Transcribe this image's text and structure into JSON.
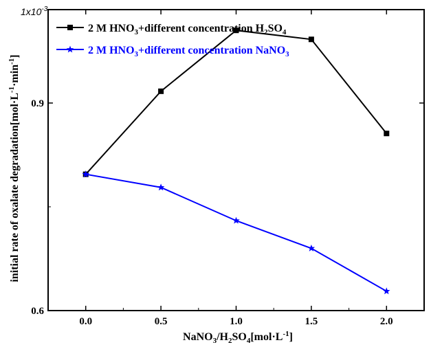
{
  "chart_data": {
    "type": "line",
    "title": "",
    "x": [
      0.0,
      0.5,
      1.0,
      1.5,
      2.0
    ],
    "xtick_labels": [
      "0.0",
      "0.5",
      "1.0",
      "1.5",
      "2.0"
    ],
    "xlim": [
      -0.25,
      2.25
    ],
    "xlabel": {
      "pre": "NaNO",
      "sub1": "3",
      "mid": "/H",
      "sub2": "2",
      "post": "SO",
      "sub3": "4",
      "tail": "[mol·L",
      "sup": "-1",
      "end": "]"
    },
    "ylim": [
      0.6,
      1.035
    ],
    "yticks": [
      0.6,
      0.9
    ],
    "ytick_labels": [
      "0.6",
      "0.9"
    ],
    "ylabel": {
      "pre": "initial rate of oxalate degradation[mol·L",
      "sup1": "-1",
      "mid": "·min",
      "sup2": "-1",
      "end": "]"
    },
    "multiplier": "1x10",
    "multiplier_exp": "-3",
    "grid": false,
    "legend_position": "top-left",
    "series": [
      {
        "name": {
          "pre": "2 M HNO",
          "sub1": "3",
          "mid": "+different concentration H",
          "sub2": "2",
          "post": "SO",
          "sub3": "4"
        },
        "marker": "square",
        "color": "#000000",
        "values": [
          0.797,
          0.917,
          1.005,
          0.992,
          0.856
        ]
      },
      {
        "name": {
          "pre": "2 M HNO",
          "sub1": "3",
          "mid": "+different concentration NaNO",
          "sub2": "3"
        },
        "marker": "star",
        "color": "#0000ff",
        "values": [
          0.797,
          0.778,
          0.73,
          0.69,
          0.628
        ]
      }
    ]
  }
}
